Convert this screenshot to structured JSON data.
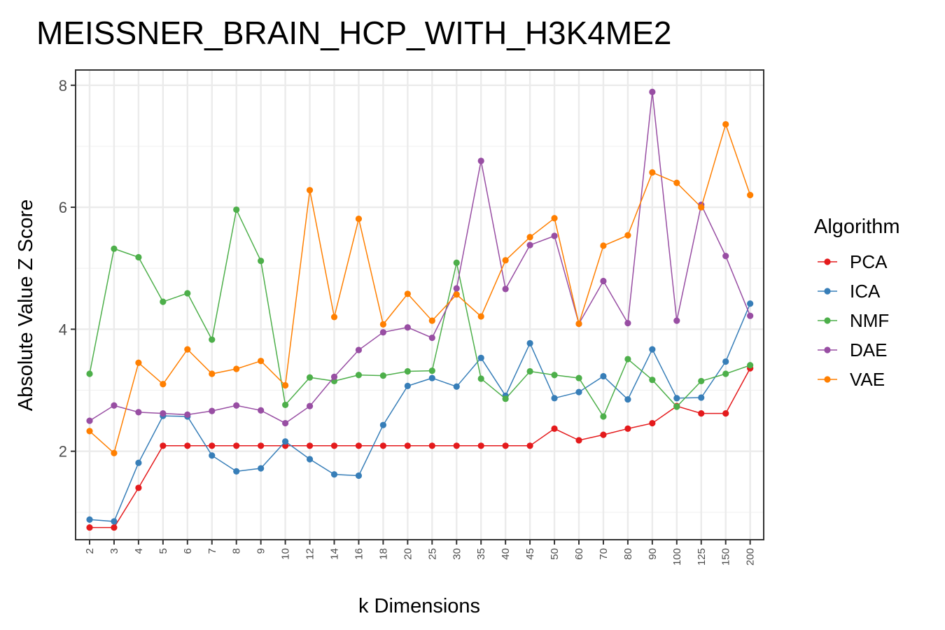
{
  "chart_data": {
    "type": "line",
    "title": "MEISSNER_BRAIN_HCP_WITH_H3K4ME2",
    "xlabel": "k Dimensions",
    "ylabel": "Absolute Value Z Score",
    "categories": [
      "2",
      "3",
      "4",
      "5",
      "6",
      "7",
      "8",
      "9",
      "10",
      "12",
      "14",
      "16",
      "18",
      "20",
      "25",
      "30",
      "35",
      "40",
      "45",
      "50",
      "60",
      "70",
      "80",
      "90",
      "100",
      "125",
      "150",
      "200"
    ],
    "yticks": [
      2,
      4,
      6,
      8
    ],
    "ylim": [
      0.55,
      8.25
    ],
    "grid": true,
    "legend": {
      "title": "Algorithm",
      "position": "right"
    },
    "series": [
      {
        "name": "PCA",
        "color": "#e41a1c",
        "values": [
          0.75,
          0.75,
          1.4,
          2.09,
          2.09,
          2.09,
          2.09,
          2.09,
          2.09,
          2.09,
          2.09,
          2.09,
          2.09,
          2.09,
          2.09,
          2.09,
          2.09,
          2.09,
          2.09,
          2.37,
          2.18,
          2.27,
          2.37,
          2.46,
          2.74,
          2.62,
          2.62,
          3.36
        ]
      },
      {
        "name": "ICA",
        "color": "#377eb8",
        "values": [
          0.88,
          0.85,
          1.81,
          2.58,
          2.57,
          1.93,
          1.67,
          1.72,
          2.16,
          1.87,
          1.62,
          1.6,
          2.43,
          3.07,
          3.2,
          3.06,
          3.53,
          2.91,
          3.77,
          2.87,
          2.97,
          3.23,
          2.85,
          3.67,
          2.87,
          2.88,
          3.47,
          4.42
        ]
      },
      {
        "name": "NMF",
        "color": "#4daf4a",
        "values": [
          3.27,
          5.32,
          5.18,
          4.45,
          4.59,
          3.83,
          5.96,
          5.12,
          2.76,
          3.21,
          3.15,
          3.25,
          3.24,
          3.31,
          3.32,
          5.09,
          3.19,
          2.86,
          3.31,
          3.25,
          3.2,
          2.57,
          3.51,
          3.17,
          2.73,
          3.15,
          3.27,
          3.41
        ]
      },
      {
        "name": "DAE",
        "color": "#984ea3",
        "values": [
          2.5,
          2.75,
          2.64,
          2.62,
          2.6,
          2.66,
          2.75,
          2.67,
          2.46,
          2.74,
          3.22,
          3.66,
          3.95,
          4.03,
          3.86,
          4.67,
          6.76,
          4.66,
          5.38,
          5.53,
          4.09,
          4.79,
          4.1,
          7.89,
          4.14,
          6.04,
          5.2,
          4.22
        ]
      },
      {
        "name": "VAE",
        "color": "#ff7f00",
        "values": [
          2.33,
          1.97,
          3.45,
          3.1,
          3.67,
          3.27,
          3.35,
          3.48,
          3.08,
          6.28,
          4.2,
          5.81,
          4.08,
          4.58,
          4.14,
          4.57,
          4.21,
          5.13,
          5.51,
          5.82,
          4.09,
          5.37,
          5.54,
          6.57,
          6.4,
          6.0,
          7.36,
          6.2
        ]
      }
    ]
  }
}
